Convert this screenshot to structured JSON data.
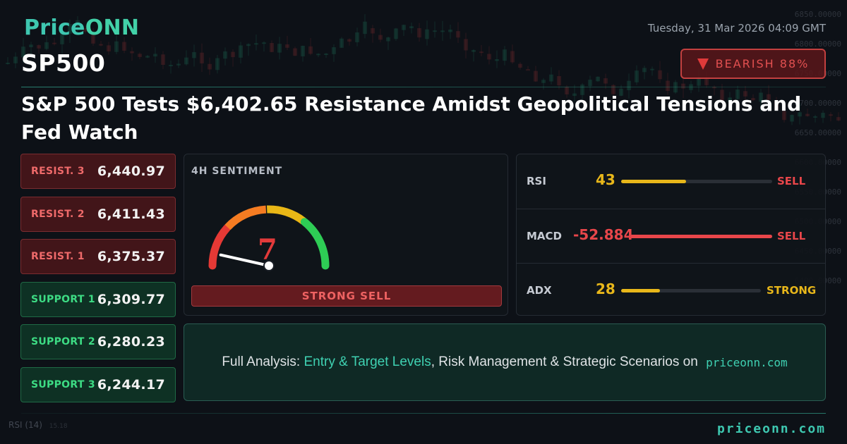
{
  "brand": {
    "logo_text_a": "Price",
    "logo_text_b": "ONN",
    "footer": "priceonn.com"
  },
  "header": {
    "datetime": "Tuesday, 31 Mar 2026 04:09 GMT",
    "symbol": "SP500",
    "bias_label": "BEARISH 88%",
    "bias_icon": "triangle-down-icon",
    "headline": "S&P 500 Tests $6,402.65 Resistance Amidst Geopolitical Tensions and Fed Watch"
  },
  "levels": [
    {
      "label": "RESIST. 3",
      "value": "6,440.97",
      "kind": "resistance"
    },
    {
      "label": "RESIST. 2",
      "value": "6,411.43",
      "kind": "resistance"
    },
    {
      "label": "RESIST. 1",
      "value": "6,375.37",
      "kind": "resistance"
    },
    {
      "label": "SUPPORT 1",
      "value": "6,309.77",
      "kind": "support"
    },
    {
      "label": "SUPPORT 2",
      "value": "6,280.23",
      "kind": "support"
    },
    {
      "label": "SUPPORT 3",
      "value": "6,244.17",
      "kind": "support"
    }
  ],
  "sentiment": {
    "title": "4H SENTIMENT",
    "score": "7",
    "score_fraction": 0.07,
    "signal": "STRONG SELL",
    "gauge_colors": [
      "#e53935",
      "#f57c22",
      "#e9b716",
      "#2ecc55"
    ]
  },
  "indicators": [
    {
      "name": "RSI",
      "value": "43",
      "signal": "SELL",
      "level": 0.43,
      "value_color": "#e8b71a",
      "signal_color": "#e8464a",
      "bar_color": "#e8b71a"
    },
    {
      "name": "MACD",
      "value": "-52.884",
      "signal": "SELL",
      "level": 1.0,
      "value_color": "#e8464a",
      "signal_color": "#e8464a",
      "bar_color": "#e8464a"
    },
    {
      "name": "ADX",
      "value": "28",
      "signal": "STRONG",
      "level": 0.28,
      "value_color": "#e8b71a",
      "signal_color": "#e8b71a",
      "bar_color": "#e8b71a"
    }
  ],
  "cta": {
    "prefix": "Full Analysis: ",
    "highlight": "Entry & Target Levels",
    "middle": ", Risk Management & Strategic Scenarios on ",
    "site": "priceonn.com"
  },
  "background": {
    "price_labels": [
      "6850.00000",
      "6800.00000",
      "6750.00000",
      "6700.00000",
      "6650.00000",
      "6600.00000",
      "6550.00000",
      "6500.00000",
      "6450.00000",
      "6400.00000"
    ],
    "rsi_label": "RSI",
    "rsi_period": "(14)",
    "rsi_extra": "15.18"
  }
}
